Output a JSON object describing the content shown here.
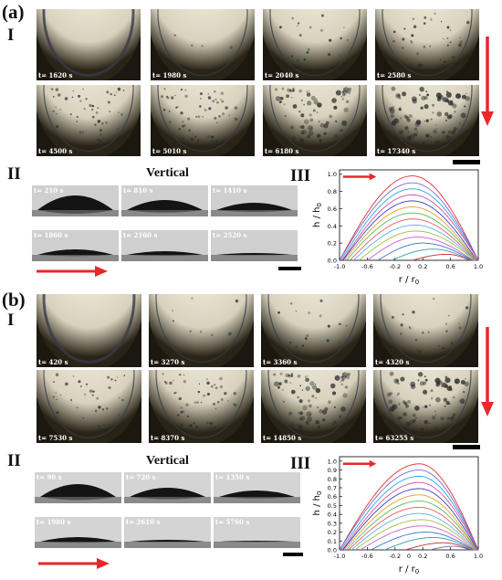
{
  "panel_a": {
    "label": "(a)",
    "row_label": "I",
    "top_view_times": [
      "t= 1620 s",
      "t= 1980 s",
      "t= 2040 s",
      "t= 2580 s",
      "t= 4500 s",
      "t= 5010 s",
      "t= 6180 s",
      "t= 17340 s"
    ],
    "side_label": "II",
    "side_title": "Vertical",
    "side_view_times": [
      "t= 210 s",
      "t= 810 s",
      "t= 1410 s",
      "t= 1860 s",
      "t= 2160 s",
      "t= 2520 s"
    ],
    "chart_label": "III"
  },
  "panel_b": {
    "label": "(b)",
    "row_label": "I",
    "top_view_times": [
      "t= 420 s",
      "t= 3270 s",
      "t= 3360 s",
      "t= 4320 s",
      "t= 7530 s",
      "t= 8370 s",
      "t= 14850 s",
      "t= 63255 s"
    ],
    "side_label": "II",
    "side_title": "Vertical",
    "side_view_times": [
      "t= 90 s",
      "t= 720 s",
      "t= 1350 s",
      "t= 1980 s",
      "t= 2610 s",
      "t= 5760 s"
    ],
    "chart_label": "III"
  },
  "colors": {
    "arrow": "#e8282b",
    "axis": "#000000"
  },
  "chart_data": [
    {
      "type": "line",
      "xlabel": "r / r0",
      "ylabel": "h / h0",
      "xlim": [
        -1.0,
        1.0
      ],
      "ylim": [
        0.0,
        1.05
      ],
      "xticks": [
        "-1.0",
        "-0.6",
        "-0.2",
        "0.2",
        "0.6",
        "1.0"
      ],
      "xticks_secondary": [
        "0"
      ],
      "yticks": [
        "0.0",
        "0.2",
        "0.4",
        "0.6",
        "0.8",
        "1.0"
      ],
      "series": [
        {
          "peak": 0.98,
          "peak_x": 0.05,
          "left": -1.0,
          "right": 1.0,
          "color": "#e03030"
        },
        {
          "peak": 0.9,
          "peak_x": 0.05,
          "left": -1.0,
          "right": 1.0,
          "color": "#7a6bd6"
        },
        {
          "peak": 0.83,
          "peak_x": 0.05,
          "left": -0.98,
          "right": 1.0,
          "color": "#2aa8d8"
        },
        {
          "peak": 0.76,
          "peak_x": 0.05,
          "left": -0.96,
          "right": 1.0,
          "color": "#d84d9a"
        },
        {
          "peak": 0.69,
          "peak_x": 0.05,
          "left": -0.95,
          "right": 0.98,
          "color": "#3c3ccc"
        },
        {
          "peak": 0.62,
          "peak_x": 0.05,
          "left": -0.93,
          "right": 0.97,
          "color": "#e8a020"
        },
        {
          "peak": 0.55,
          "peak_x": 0.05,
          "left": -0.9,
          "right": 0.97,
          "color": "#5ab85a"
        },
        {
          "peak": 0.48,
          "peak_x": 0.06,
          "left": -0.85,
          "right": 0.96,
          "color": "#e06060"
        },
        {
          "peak": 0.41,
          "peak_x": 0.08,
          "left": -0.8,
          "right": 0.95,
          "color": "#60b0e8"
        },
        {
          "peak": 0.34,
          "peak_x": 0.1,
          "left": -0.72,
          "right": 0.95,
          "color": "#a0c040"
        },
        {
          "peak": 0.27,
          "peak_x": 0.12,
          "left": -0.6,
          "right": 0.93,
          "color": "#d060d0"
        },
        {
          "peak": 0.2,
          "peak_x": 0.2,
          "left": -0.45,
          "right": 0.92,
          "color": "#4070d0"
        },
        {
          "peak": 0.13,
          "peak_x": 0.35,
          "left": -0.25,
          "right": 0.9,
          "color": "#30a0a0"
        },
        {
          "peak": 0.07,
          "peak_x": 0.55,
          "left": 0.05,
          "right": 0.88,
          "color": "#c03030"
        }
      ]
    },
    {
      "type": "line",
      "xlabel": "r / r0",
      "ylabel": "h / h0",
      "xlim": [
        -1.0,
        1.0
      ],
      "ylim": [
        0.0,
        1.05
      ],
      "xticks": [
        "-1.0",
        "-0.6",
        "-0.2",
        "0.2",
        "0.6",
        "1.0"
      ],
      "xticks_secondary": [
        "0"
      ],
      "yticks": [
        "0.0",
        "0.1",
        "0.2",
        "0.3",
        "0.4",
        "0.5",
        "0.6",
        "0.7",
        "0.8",
        "0.9",
        "1.0"
      ],
      "series": [
        {
          "peak": 0.97,
          "peak_x": 0.15,
          "left": -1.0,
          "right": 1.0,
          "color": "#e03030"
        },
        {
          "peak": 0.9,
          "peak_x": 0.15,
          "left": -1.0,
          "right": 1.0,
          "color": "#7a6bd6"
        },
        {
          "peak": 0.83,
          "peak_x": 0.15,
          "left": -0.98,
          "right": 1.0,
          "color": "#2aa8d8"
        },
        {
          "peak": 0.76,
          "peak_x": 0.15,
          "left": -0.96,
          "right": 1.0,
          "color": "#d84d9a"
        },
        {
          "peak": 0.69,
          "peak_x": 0.15,
          "left": -0.95,
          "right": 0.99,
          "color": "#3c3ccc"
        },
        {
          "peak": 0.62,
          "peak_x": 0.15,
          "left": -0.93,
          "right": 0.98,
          "color": "#e8a020"
        },
        {
          "peak": 0.55,
          "peak_x": 0.15,
          "left": -0.9,
          "right": 0.98,
          "color": "#5ab85a"
        },
        {
          "peak": 0.48,
          "peak_x": 0.15,
          "left": -0.87,
          "right": 0.97,
          "color": "#e06060"
        },
        {
          "peak": 0.41,
          "peak_x": 0.15,
          "left": -0.83,
          "right": 0.96,
          "color": "#60b0e8"
        },
        {
          "peak": 0.34,
          "peak_x": 0.18,
          "left": -0.78,
          "right": 0.95,
          "color": "#a0c040"
        },
        {
          "peak": 0.27,
          "peak_x": 0.2,
          "left": -0.7,
          "right": 0.94,
          "color": "#d060d0"
        },
        {
          "peak": 0.2,
          "peak_x": 0.25,
          "left": -0.55,
          "right": 0.93,
          "color": "#4070d0"
        },
        {
          "peak": 0.14,
          "peak_x": 0.35,
          "left": -0.35,
          "right": 0.92,
          "color": "#30a0a0"
        },
        {
          "peak": 0.08,
          "peak_x": 0.5,
          "left": -0.05,
          "right": 0.9,
          "color": "#c03030"
        },
        {
          "peak": 0.04,
          "peak_x": 0.65,
          "left": 0.3,
          "right": 0.88,
          "color": "#8060c0"
        }
      ]
    }
  ]
}
